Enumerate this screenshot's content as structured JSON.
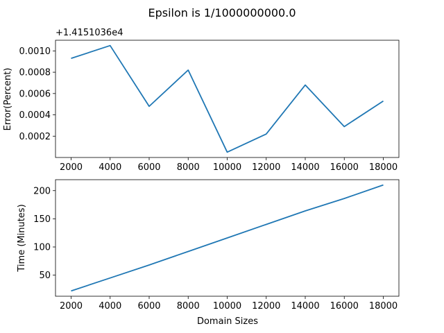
{
  "figure": {
    "title": "Epsilon is 1/1000000000.0"
  },
  "chart_data": [
    {
      "type": "line",
      "title": "",
      "xlabel": "",
      "ylabel": "Error(Percent)",
      "offset_label": "+1.4151036e4",
      "x": [
        2000,
        4000,
        6000,
        8000,
        10000,
        12000,
        14000,
        16000,
        18000
      ],
      "series": [
        {
          "values": [
            0.00093,
            0.00105,
            0.00048,
            0.00082,
            5e-05,
            0.00022,
            0.00068,
            0.00029,
            0.00053
          ]
        }
      ],
      "xticks": [
        2000,
        4000,
        6000,
        8000,
        10000,
        12000,
        14000,
        16000,
        18000
      ],
      "xtick_labels": [
        "2000",
        "4000",
        "6000",
        "8000",
        "10000",
        "12000",
        "14000",
        "16000",
        "18000"
      ],
      "yticks": [
        0.0002,
        0.0004,
        0.0006,
        0.0008,
        0.001
      ],
      "ytick_labels": [
        "0.0002",
        "0.0004",
        "0.0006",
        "0.0008",
        "0.0010"
      ],
      "xlim": [
        1200,
        18800
      ],
      "ylim": [
        0.0,
        0.0011
      ],
      "grid": false,
      "color": "#1f77b4"
    },
    {
      "type": "line",
      "title": "",
      "xlabel": "Domain Sizes",
      "ylabel": "Time (Minutes)",
      "x": [
        2000,
        4000,
        6000,
        8000,
        10000,
        12000,
        14000,
        16000,
        18000
      ],
      "series": [
        {
          "values": [
            22,
            45,
            68,
            92,
            116,
            140,
            164,
            186,
            210
          ]
        }
      ],
      "xticks": [
        2000,
        4000,
        6000,
        8000,
        10000,
        12000,
        14000,
        16000,
        18000
      ],
      "xtick_labels": [
        "2000",
        "4000",
        "6000",
        "8000",
        "10000",
        "12000",
        "14000",
        "16000",
        "18000"
      ],
      "yticks": [
        50,
        100,
        150,
        200
      ],
      "ytick_labels": [
        "50",
        "100",
        "150",
        "200"
      ],
      "xlim": [
        1200,
        18800
      ],
      "ylim": [
        12.6,
        219.4
      ],
      "grid": false,
      "color": "#1f77b4"
    }
  ]
}
